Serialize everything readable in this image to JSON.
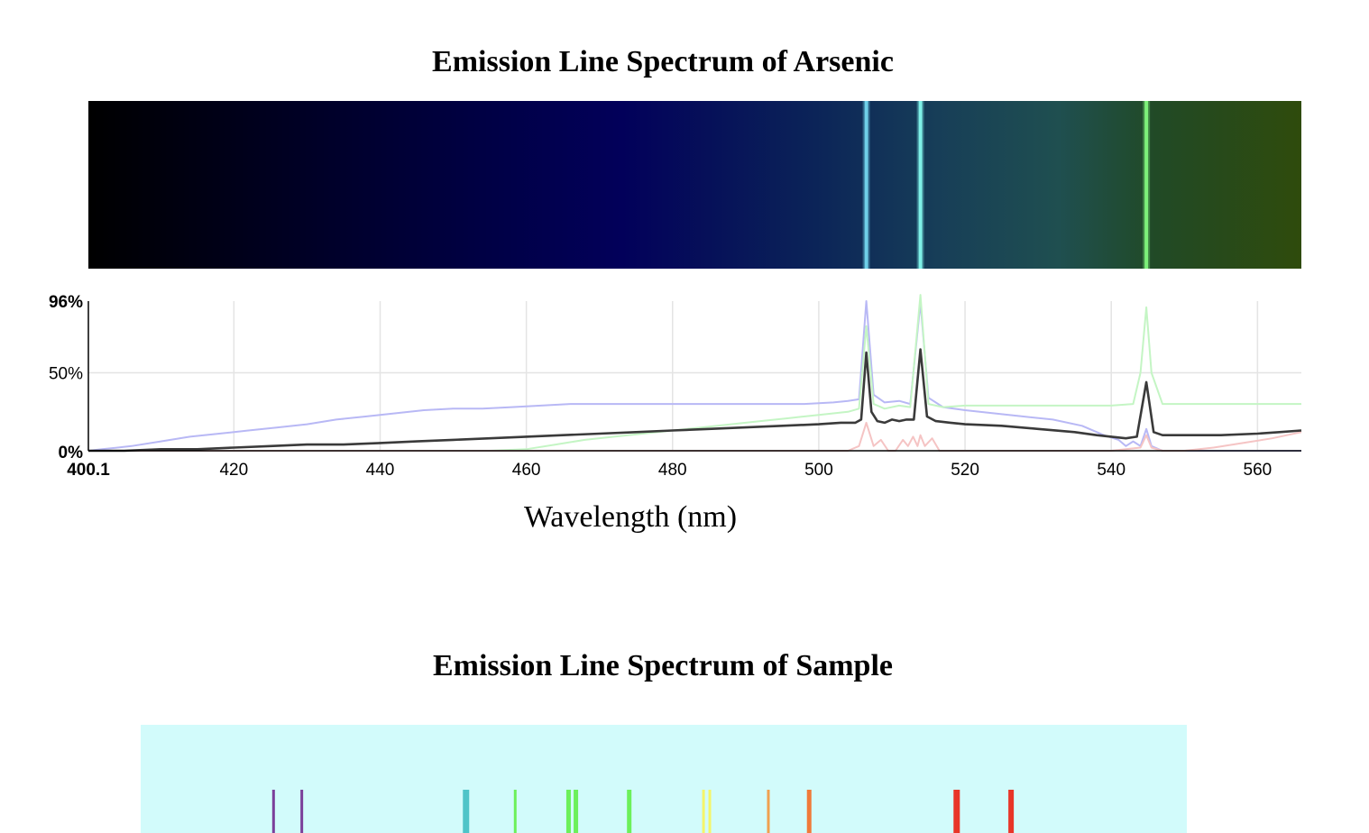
{
  "chart_data": [
    {
      "type": "line",
      "title": "Emission Line Spectrum of Arsenic",
      "xlabel": "Wavelength (nm)",
      "ylabel": "",
      "xlim": [
        400.1,
        566
      ],
      "ylim": [
        0,
        96
      ],
      "x_ticks": [
        "400.1",
        "420",
        "440",
        "460",
        "480",
        "500",
        "520",
        "540",
        "560"
      ],
      "y_ticks": [
        "96%",
        "50%",
        "0%"
      ],
      "grid": true,
      "spectrum_lines_nm": [
        506.5,
        513.9,
        544.8
      ],
      "series": [
        {
          "color": "#b8b8f5",
          "x": [
            400.1,
            402,
            406,
            410,
            414,
            418,
            422,
            426,
            430,
            434,
            438,
            442,
            446,
            450,
            454,
            458,
            462,
            466,
            470,
            474,
            478,
            482,
            486,
            490,
            494,
            498,
            502,
            504,
            505.5,
            506.5,
            507.5,
            509,
            511,
            512.5,
            513.9,
            515,
            517,
            520,
            524,
            528,
            532,
            536,
            539,
            541,
            542,
            543,
            544,
            544.8,
            545.5,
            547,
            550,
            555,
            560,
            566
          ],
          "y": [
            0,
            1,
            3,
            6,
            9,
            11,
            13,
            15,
            17,
            20,
            22,
            24,
            26,
            27,
            27,
            28,
            29,
            30,
            30,
            30,
            30,
            30,
            30,
            30,
            30,
            30,
            31,
            32,
            33,
            96,
            36,
            31,
            32,
            30,
            95,
            34,
            28,
            26,
            24,
            22,
            20,
            16,
            10,
            7,
            3,
            6,
            3,
            14,
            3,
            0,
            0,
            0,
            0,
            0
          ]
        },
        {
          "color": "#c4f5c4",
          "x": [
            400.1,
            455,
            460,
            464,
            468,
            472,
            476,
            480,
            484,
            488,
            492,
            496,
            500,
            504,
            505.5,
            506.5,
            507.5,
            509,
            511,
            512.5,
            513.9,
            515,
            517,
            520,
            530,
            540,
            543,
            544,
            544.8,
            545.5,
            547,
            550,
            555,
            560,
            566
          ],
          "y": [
            0,
            0,
            1,
            4,
            7,
            9,
            11,
            13,
            15,
            17,
            19,
            21,
            23,
            25,
            27,
            80,
            30,
            27,
            29,
            28,
            100,
            30,
            28,
            29,
            29,
            29,
            30,
            50,
            92,
            50,
            30,
            30,
            30,
            30,
            30
          ]
        },
        {
          "color": "#f5c4c4",
          "x": [
            400.1,
            504,
            505.5,
            506.5,
            507.5,
            508.5,
            509.5,
            510.5,
            511.5,
            512.2,
            512.9,
            513.5,
            513.9,
            514.5,
            515.5,
            516.5,
            517.5,
            520,
            540,
            544,
            544.8,
            545.5,
            547,
            550,
            554,
            558,
            562,
            566
          ],
          "y": [
            0,
            0,
            3,
            18,
            3,
            7,
            0,
            0,
            7,
            3,
            9,
            3,
            10,
            3,
            8,
            0,
            0,
            0,
            0,
            2,
            10,
            2,
            0,
            0,
            2,
            5,
            8,
            12
          ]
        },
        {
          "color": "#3a3a3a",
          "x": [
            400.1,
            405,
            410,
            415,
            420,
            425,
            430,
            435,
            440,
            445,
            450,
            455,
            460,
            465,
            470,
            475,
            480,
            485,
            490,
            495,
            500,
            503,
            505,
            505.8,
            506.5,
            507.2,
            508,
            509,
            510,
            511,
            512,
            513,
            513.9,
            514.8,
            516,
            518,
            520,
            525,
            530,
            535,
            538,
            540,
            542,
            543.5,
            544.8,
            545.8,
            547,
            550,
            555,
            560,
            563,
            566
          ],
          "y": [
            0,
            0,
            1,
            1,
            2,
            3,
            4,
            4,
            5,
            6,
            7,
            8,
            9,
            10,
            11,
            12,
            13,
            14,
            15,
            16,
            17,
            18,
            18,
            20,
            63,
            25,
            19,
            18,
            20,
            19,
            20,
            20,
            65,
            22,
            19,
            18,
            17,
            16,
            14,
            12,
            10,
            9,
            8,
            9,
            44,
            12,
            10,
            10,
            10,
            11,
            12,
            13
          ]
        }
      ]
    },
    {
      "type": "bar",
      "title": "Emission Line Spectrum of Sample",
      "background": "#d2fbfb",
      "lines": [
        {
          "pos": 0.127,
          "w": 3,
          "color": "#7b3f9a"
        },
        {
          "pos": 0.154,
          "w": 3,
          "color": "#7b3f9a"
        },
        {
          "pos": 0.311,
          "w": 7,
          "color": "#4fc4c8"
        },
        {
          "pos": 0.358,
          "w": 3,
          "color": "#6cf05a"
        },
        {
          "pos": 0.409,
          "w": 5,
          "color": "#6cf05a"
        },
        {
          "pos": 0.416,
          "w": 5,
          "color": "#6cf05a"
        },
        {
          "pos": 0.467,
          "w": 5,
          "color": "#6cf05a"
        },
        {
          "pos": 0.538,
          "w": 3,
          "color": "#f5f56a"
        },
        {
          "pos": 0.544,
          "w": 3,
          "color": "#f5f56a"
        },
        {
          "pos": 0.6,
          "w": 3,
          "color": "#f0a050"
        },
        {
          "pos": 0.639,
          "w": 5,
          "color": "#f07a3a"
        },
        {
          "pos": 0.78,
          "w": 7,
          "color": "#e83528"
        },
        {
          "pos": 0.832,
          "w": 6,
          "color": "#e83528"
        }
      ]
    }
  ]
}
